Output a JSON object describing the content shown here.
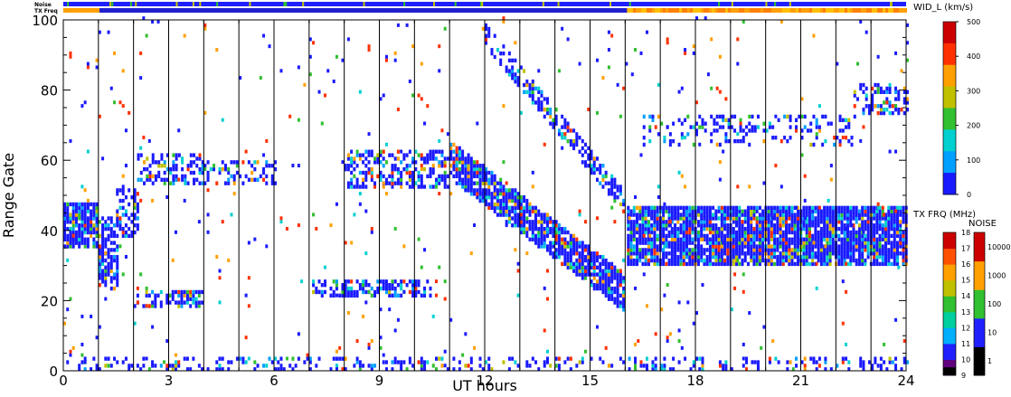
{
  "chart_data": {
    "type": "heatmap",
    "xlabel": "UT hours",
    "ylabel": "Range Gate",
    "xlim": [
      0,
      24
    ],
    "ylim": [
      0,
      100
    ],
    "x_ticks": [
      0,
      3,
      6,
      9,
      12,
      15,
      18,
      21,
      24
    ],
    "y_ticks": [
      0,
      20,
      40,
      60,
      80,
      100
    ],
    "scan_boundaries_hours": [
      1,
      2,
      3,
      4,
      5,
      6,
      7,
      8,
      9,
      10,
      11,
      12,
      13,
      14,
      15,
      16,
      17,
      18,
      19,
      20,
      21,
      22,
      23
    ],
    "status_bars": {
      "noise_label": "Noise",
      "txfreq_label": "TX Freq",
      "txfreq_change_hour": 16.05
    },
    "colorbars": {
      "width": {
        "title": "WID_L (km/s)",
        "range": [
          0,
          500
        ],
        "ticks": [
          0,
          100,
          200,
          300,
          400,
          500
        ],
        "colors": [
          "#1a1aff",
          "#00a0ff",
          "#00d0d0",
          "#30c030",
          "#c0c000",
          "#ffa000",
          "#ff3000",
          "#cc0000"
        ]
      },
      "tx_freq": {
        "title": "TX FRQ (MHz)",
        "ticks": [
          9,
          10,
          11,
          12,
          13,
          14,
          15,
          16,
          17,
          18
        ],
        "colors": [
          "#000000",
          "#600080",
          "#2020ff",
          "#00b0ff",
          "#00d0a0",
          "#30c030",
          "#c0c000",
          "#ffa000",
          "#ff5000",
          "#cc0000"
        ]
      },
      "noise": {
        "title": "NOISE",
        "ticks": [
          "1",
          "10",
          "100",
          "1000",
          "10000"
        ],
        "colors": [
          "#000000",
          "#2020ff",
          "#30c030",
          "#ffa000",
          "#cc0000"
        ]
      }
    },
    "scatter_bands": [
      {
        "x": [
          0,
          1
        ],
        "y_center": 41,
        "y_halfwidth": 6,
        "density": 0.9
      },
      {
        "x": [
          1,
          1.5
        ],
        "y_center": 33,
        "y_halfwidth": 10,
        "density": 0.6
      },
      {
        "x": [
          1.5,
          2.1
        ],
        "y_center": 45,
        "y_halfwidth": 7,
        "density": 0.5
      },
      {
        "x": [
          2.1,
          4
        ],
        "y_center": 57,
        "y_halfwidth": 4,
        "density": 0.4
      },
      {
        "x": [
          2,
          4
        ],
        "y_center": 20,
        "y_halfwidth": 2,
        "density": 0.5
      },
      {
        "x": [
          4,
          6
        ],
        "y_center": 56,
        "y_halfwidth": 3,
        "density": 0.3
      },
      {
        "x": [
          7,
          10.5
        ],
        "y_center": 23,
        "y_halfwidth": 2,
        "density": 0.55
      },
      {
        "x": [
          8,
          11
        ],
        "y_center": 57,
        "y_halfwidth": 5,
        "density": 0.5
      },
      {
        "x": [
          11,
          16
        ],
        "y_center_start": 60,
        "y_center_end": 22,
        "y_halfwidth": 5,
        "density": 0.85
      },
      {
        "x": [
          12,
          16
        ],
        "y_center_start": 96,
        "y_center_end": 47,
        "y_halfwidth": 3,
        "density": 0.5
      },
      {
        "x": [
          16.05,
          24
        ],
        "y_center": 38,
        "y_halfwidth": 8,
        "density": 0.9
      },
      {
        "x": [
          16.5,
          22.5
        ],
        "y_center": 68,
        "y_halfwidth": 4,
        "density": 0.25
      },
      {
        "x": [
          22.5,
          24
        ],
        "y_center": 77,
        "y_halfwidth": 4,
        "density": 0.4
      },
      {
        "x": [
          0,
          24
        ],
        "y_center": 1,
        "y_halfwidth": 2,
        "density": 0.25
      }
    ],
    "noise_density": 0.05
  }
}
